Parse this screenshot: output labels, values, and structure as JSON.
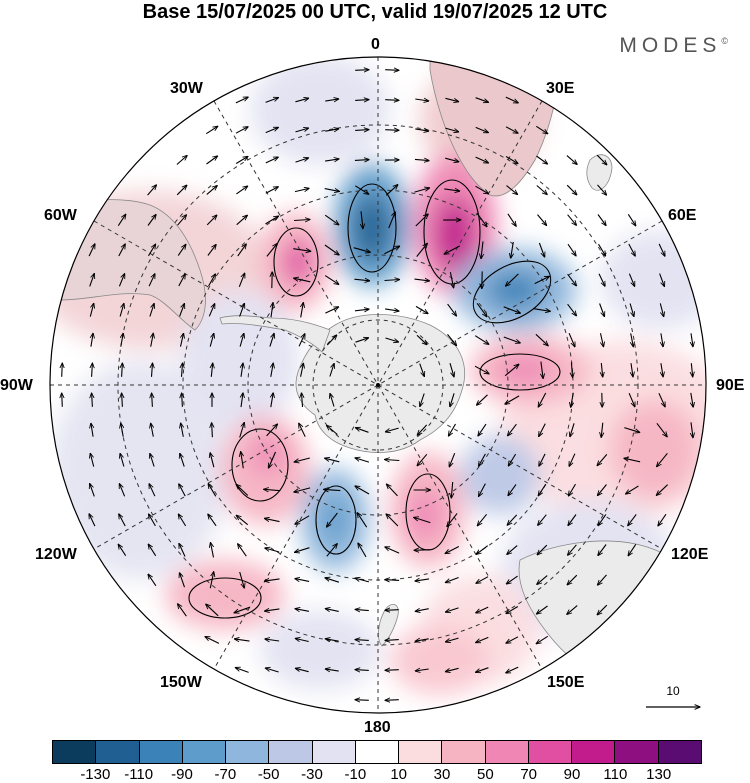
{
  "title": "Base 15/07/2025 00 UTC, valid 19/07/2025 12 UTC",
  "brand": "MODES",
  "brand_mark": "©",
  "longitude_labels": {
    "lon_0": "0",
    "lon_30e": "30E",
    "lon_60e": "60E",
    "lon_90e": "90E",
    "lon_120e": "120E",
    "lon_150e": "150E",
    "lon_180": "180",
    "lon_150w": "150W",
    "lon_120w": "120W",
    "lon_90w": "90W",
    "lon_60w": "60W",
    "lon_30w": "30W"
  },
  "vector_reference": {
    "label": "10",
    "value": 10
  },
  "colorbar": {
    "colors": [
      "#0b3c5d",
      "#1f5f92",
      "#3b82b8",
      "#5e9ccb",
      "#8fb6dc",
      "#bcc8e6",
      "#e2e2f2",
      "#ffffff",
      "#fbdde0",
      "#f6b4c2",
      "#ef86b4",
      "#e04fa2",
      "#c21c8c",
      "#8e1080",
      "#5a0c72"
    ],
    "tick_labels": [
      "-130",
      "-110",
      "-90",
      "-70",
      "-50",
      "-30",
      "-10",
      "10",
      "30",
      "50",
      "70",
      "90",
      "110",
      "130"
    ]
  },
  "colors": {
    "land": "#ebebeb",
    "background": "#ffffff"
  }
}
